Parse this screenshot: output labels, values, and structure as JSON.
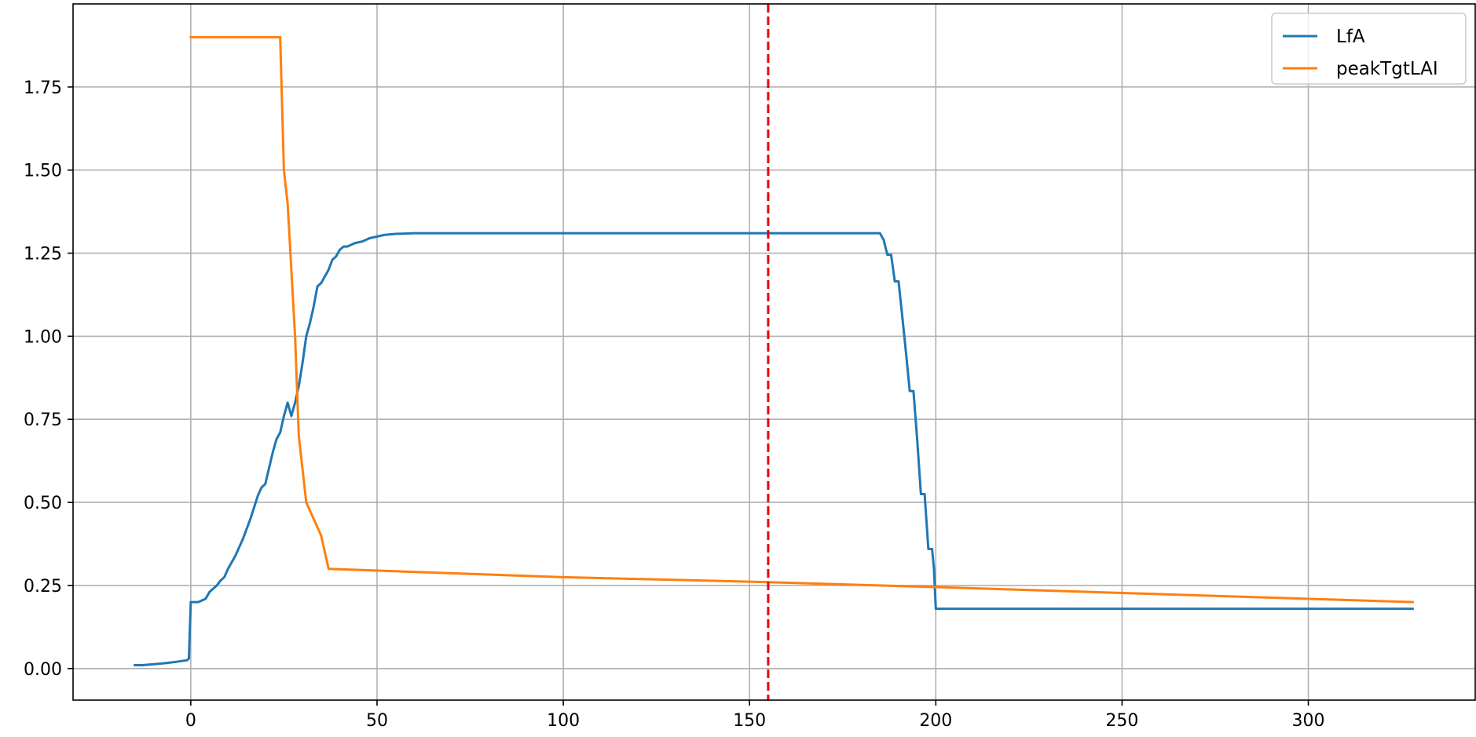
{
  "chart_data": {
    "type": "line",
    "title": "",
    "xlabel": "",
    "ylabel": "",
    "xlim": [
      -31.6,
      344.8
    ],
    "ylim": [
      -0.095,
      2.0
    ],
    "grid": true,
    "legend_position": "top-right",
    "x_ticks": [
      0,
      50,
      100,
      150,
      200,
      250,
      300
    ],
    "y_ticks": [
      0.0,
      0.25,
      0.5,
      0.75,
      1.0,
      1.25,
      1.5,
      1.75
    ],
    "x_tick_labels": [
      "0",
      "50",
      "100",
      "150",
      "200",
      "250",
      "300"
    ],
    "y_tick_labels": [
      "0.00",
      "0.25",
      "0.50",
      "0.75",
      "1.00",
      "1.25",
      "1.50",
      "1.75"
    ],
    "vertical_line": {
      "x": 155,
      "color": "#e8000b",
      "style": "dashed"
    },
    "series": [
      {
        "name": "LfA",
        "color": "#1f77b4",
        "points": [
          [
            -15,
            0.01
          ],
          [
            -13,
            0.01
          ],
          [
            -10,
            0.013
          ],
          [
            -7,
            0.016
          ],
          [
            -4,
            0.02
          ],
          [
            -1,
            0.025
          ],
          [
            -0.5,
            0.03
          ],
          [
            0,
            0.2
          ],
          [
            2,
            0.2
          ],
          [
            3,
            0.205
          ],
          [
            4,
            0.21
          ],
          [
            5,
            0.23
          ],
          [
            7,
            0.25
          ],
          [
            8,
            0.265
          ],
          [
            9,
            0.275
          ],
          [
            10,
            0.3
          ],
          [
            12,
            0.34
          ],
          [
            14,
            0.39
          ],
          [
            16,
            0.45
          ],
          [
            18,
            0.52
          ],
          [
            19,
            0.545
          ],
          [
            20,
            0.555
          ],
          [
            22,
            0.65
          ],
          [
            23,
            0.69
          ],
          [
            24,
            0.71
          ],
          [
            25,
            0.76
          ],
          [
            26,
            0.8
          ],
          [
            27,
            0.76
          ],
          [
            28,
            0.8
          ],
          [
            29,
            0.85
          ],
          [
            30,
            0.92
          ],
          [
            31,
            1.0
          ],
          [
            32,
            1.04
          ],
          [
            33,
            1.09
          ],
          [
            34,
            1.15
          ],
          [
            35,
            1.16
          ],
          [
            37,
            1.2
          ],
          [
            38,
            1.23
          ],
          [
            39,
            1.24
          ],
          [
            40,
            1.26
          ],
          [
            41,
            1.27
          ],
          [
            42,
            1.27
          ],
          [
            44,
            1.28
          ],
          [
            46,
            1.285
          ],
          [
            48,
            1.295
          ],
          [
            50,
            1.3
          ],
          [
            52,
            1.305
          ],
          [
            55,
            1.308
          ],
          [
            60,
            1.31
          ],
          [
            100,
            1.31
          ],
          [
            150,
            1.31
          ],
          [
            185,
            1.31
          ],
          [
            186,
            1.29
          ],
          [
            187,
            1.245
          ],
          [
            188,
            1.245
          ],
          [
            189,
            1.165
          ],
          [
            190,
            1.165
          ],
          [
            191,
            1.06
          ],
          [
            192,
            0.95
          ],
          [
            193,
            0.835
          ],
          [
            194,
            0.835
          ],
          [
            195,
            0.69
          ],
          [
            196,
            0.525
          ],
          [
            197,
            0.525
          ],
          [
            198,
            0.36
          ],
          [
            199,
            0.36
          ],
          [
            199.5,
            0.3
          ],
          [
            200,
            0.18
          ],
          [
            250,
            0.18
          ],
          [
            300,
            0.18
          ],
          [
            328,
            0.18
          ]
        ]
      },
      {
        "name": "peakTgtLAI",
        "color": "#ff7f0e",
        "points": [
          [
            0,
            1.9
          ],
          [
            24,
            1.9
          ],
          [
            25,
            1.5
          ],
          [
            26,
            1.4
          ],
          [
            28,
            1.0
          ],
          [
            29,
            0.7
          ],
          [
            31,
            0.5
          ],
          [
            33,
            0.45
          ],
          [
            35,
            0.4
          ],
          [
            37,
            0.3
          ],
          [
            100,
            0.275
          ],
          [
            155,
            0.26
          ],
          [
            200,
            0.245
          ],
          [
            328,
            0.2
          ]
        ]
      }
    ]
  }
}
